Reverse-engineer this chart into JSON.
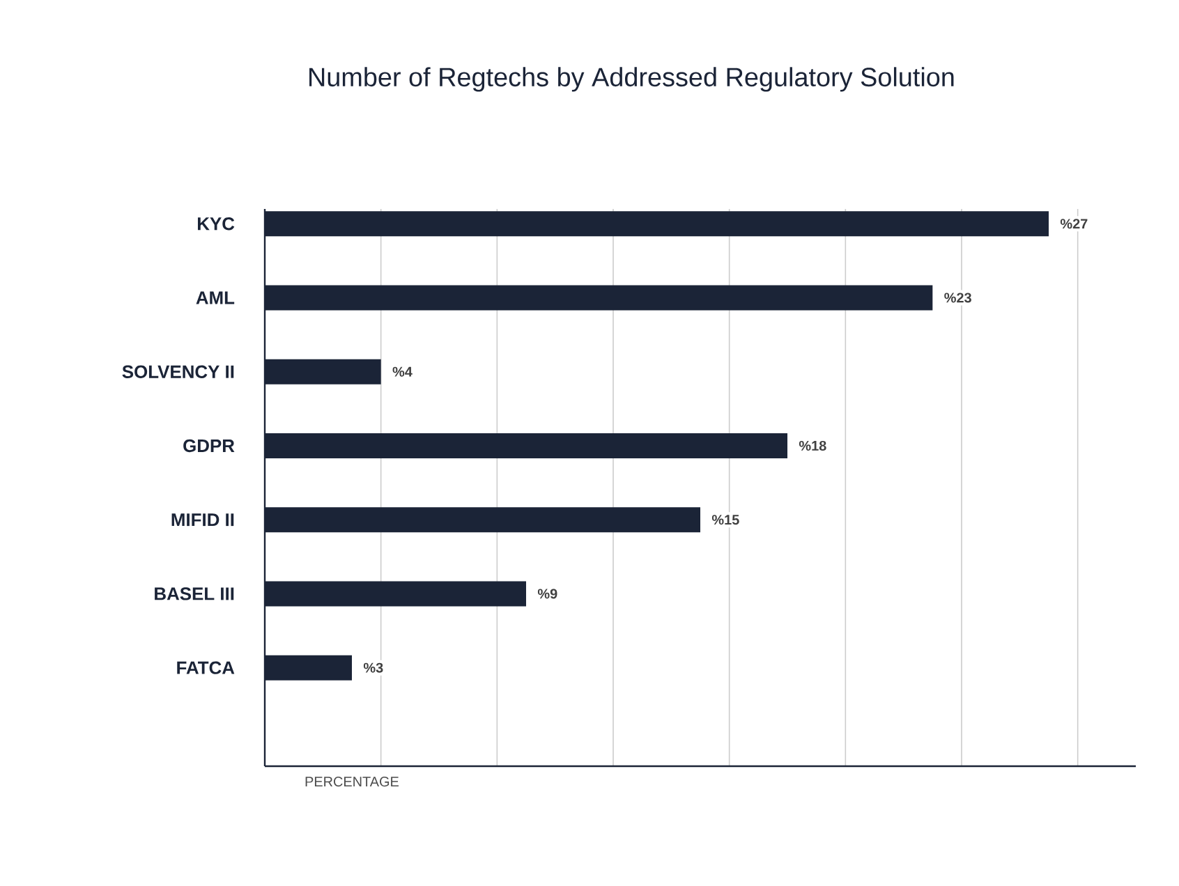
{
  "chart_data": {
    "type": "bar",
    "orientation": "horizontal",
    "title": "Number of Regtechs by Addressed Regulatory Solution",
    "xlabel": "PERCENTAGE",
    "categories": [
      "KYC",
      "AML",
      "SOLVENCY II",
      "GDPR",
      "MIFID II",
      "BASEL III",
      "FATCA"
    ],
    "values": [
      27,
      23,
      4,
      18,
      15,
      9,
      3
    ],
    "value_labels": [
      "%27",
      "%23",
      "%4",
      "%18",
      "%15",
      "%9",
      "%3"
    ],
    "color": "#1b2437",
    "xlim": [
      0,
      30
    ],
    "xticks": [
      {
        "value": 4,
        "label": null
      },
      {
        "value": 8,
        "label": null
      },
      {
        "value": 12,
        "label": null
      },
      {
        "value": 16,
        "label": null
      },
      {
        "value": 20,
        "label": null
      },
      {
        "value": 24,
        "label": null
      },
      {
        "value": 28,
        "label": null
      }
    ],
    "grid": "x",
    "tick_labels": "y"
  }
}
